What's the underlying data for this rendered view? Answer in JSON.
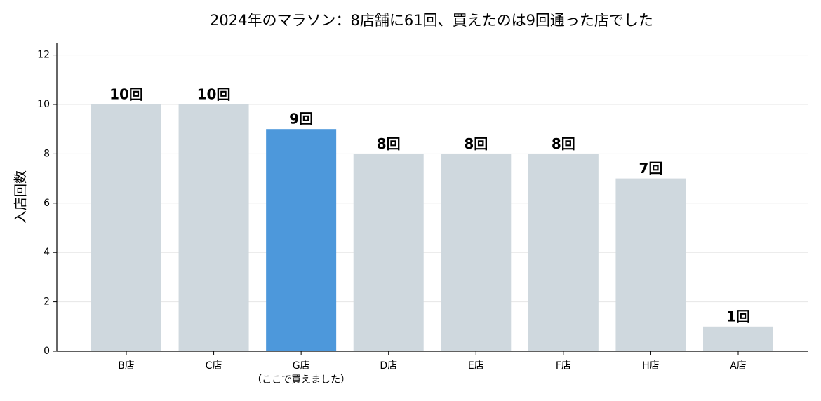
{
  "chart_data": {
    "type": "bar",
    "title": "2024年のマラソン：8店舗に61回、買えたのは9回通った店でした",
    "y_label": "入店回数",
    "categories": [
      "B店",
      "C店",
      "G店\n（ここで買えました）",
      "D店",
      "E店",
      "F店",
      "H店",
      "A店"
    ],
    "values": [
      10,
      10,
      9,
      8,
      8,
      8,
      7,
      1
    ],
    "value_labels": [
      "10回",
      "10回",
      "9回",
      "8回",
      "8回",
      "8回",
      "7回",
      "1回"
    ],
    "colors": [
      "#cfd8de",
      "#cfd8de",
      "#4d98db",
      "#cfd8de",
      "#cfd8de",
      "#cfd8de",
      "#cfd8de",
      "#cfd8de"
    ],
    "ylim": [
      0,
      12.5
    ],
    "yticks": [
      0,
      2,
      4,
      6,
      8,
      10,
      12
    ],
    "grid": true
  }
}
